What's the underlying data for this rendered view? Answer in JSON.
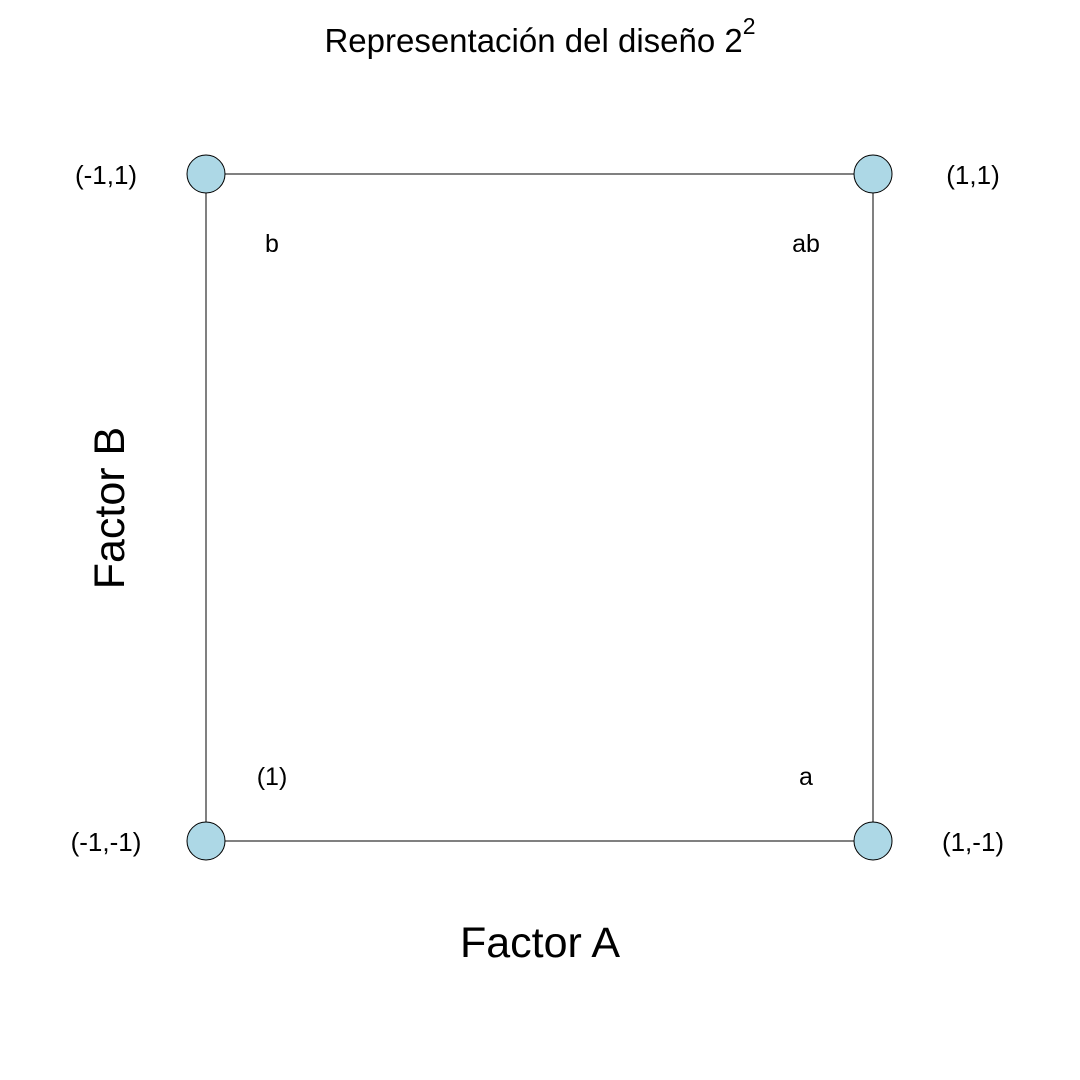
{
  "title": {
    "main": "Representación del diseño 2",
    "superscript": "2"
  },
  "axes": {
    "x_label": "Factor A",
    "y_label": "Factor B"
  },
  "corners": {
    "top_left": {
      "coord": "(-1,1)",
      "run": "b"
    },
    "top_right": {
      "coord": "(1,1)",
      "run": "ab"
    },
    "bottom_left": {
      "coord": "(-1,-1)",
      "run": "(1)"
    },
    "bottom_right": {
      "coord": "(1,-1)",
      "run": "a"
    }
  },
  "colors": {
    "point_fill": "#add8e6",
    "line": "#000000"
  }
}
